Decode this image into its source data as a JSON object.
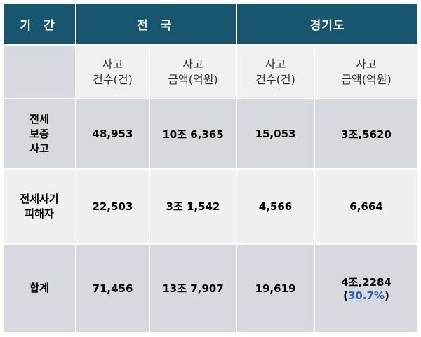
{
  "table": {
    "headers": {
      "period": "기 간",
      "nationwide": "전 국",
      "gyeonggi": "경기도"
    },
    "subheaders": [
      [
        "사고",
        "건수(건)"
      ],
      [
        "사고",
        "금액(억원)"
      ],
      [
        "사고",
        "건수(건)"
      ],
      [
        "사고",
        "금액(억원)"
      ]
    ],
    "rows": [
      {
        "label_lines": [
          "전세",
          "보증",
          "사고"
        ],
        "values": [
          "48,953",
          "10조 6,365",
          "15,053",
          "3조,5620"
        ]
      },
      {
        "label_lines": [
          "전세사기",
          "피해자"
        ],
        "values": [
          "22,503",
          "3조 1,542",
          "4,566",
          "6,664"
        ]
      },
      {
        "label_lines": [
          "합계"
        ],
        "values": [
          "71,456",
          "13조 7,907",
          "19,619",
          "4조,2284"
        ],
        "share": {
          "open": "(",
          "value": "30.7%",
          "close": ")"
        }
      }
    ],
    "colors": {
      "header_bg": "#17566e",
      "header_text": "#ffffff",
      "row_dark": "#d6d9de",
      "row_light": "#f0f0f0",
      "highlight": "#2d65b0"
    }
  }
}
